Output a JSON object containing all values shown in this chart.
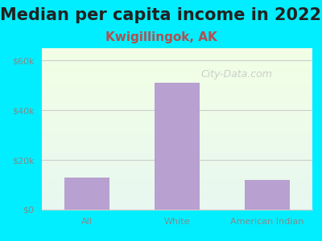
{
  "title": "Median per capita income in 2022",
  "subtitle": "Kwigillingok, AK",
  "categories": [
    "All",
    "White",
    "American Indian"
  ],
  "values": [
    13000,
    51000,
    12000
  ],
  "bar_color": "#b8a0d0",
  "title_fontsize": 15,
  "subtitle_fontsize": 11,
  "subtitle_color": "#b05050",
  "title_color": "#222222",
  "background_outer": "#00eeff",
  "background_inner_top": "#e8f8f0",
  "background_inner_bottom": "#f5ffe8",
  "yticks": [
    0,
    20000,
    40000,
    60000
  ],
  "ytick_labels": [
    "$0",
    "$20k",
    "$40k",
    "$60k"
  ],
  "ylim": [
    0,
    65000
  ],
  "tick_color": "#888888",
  "grid_color": "#cccccc",
  "watermark": "City-Data.com"
}
